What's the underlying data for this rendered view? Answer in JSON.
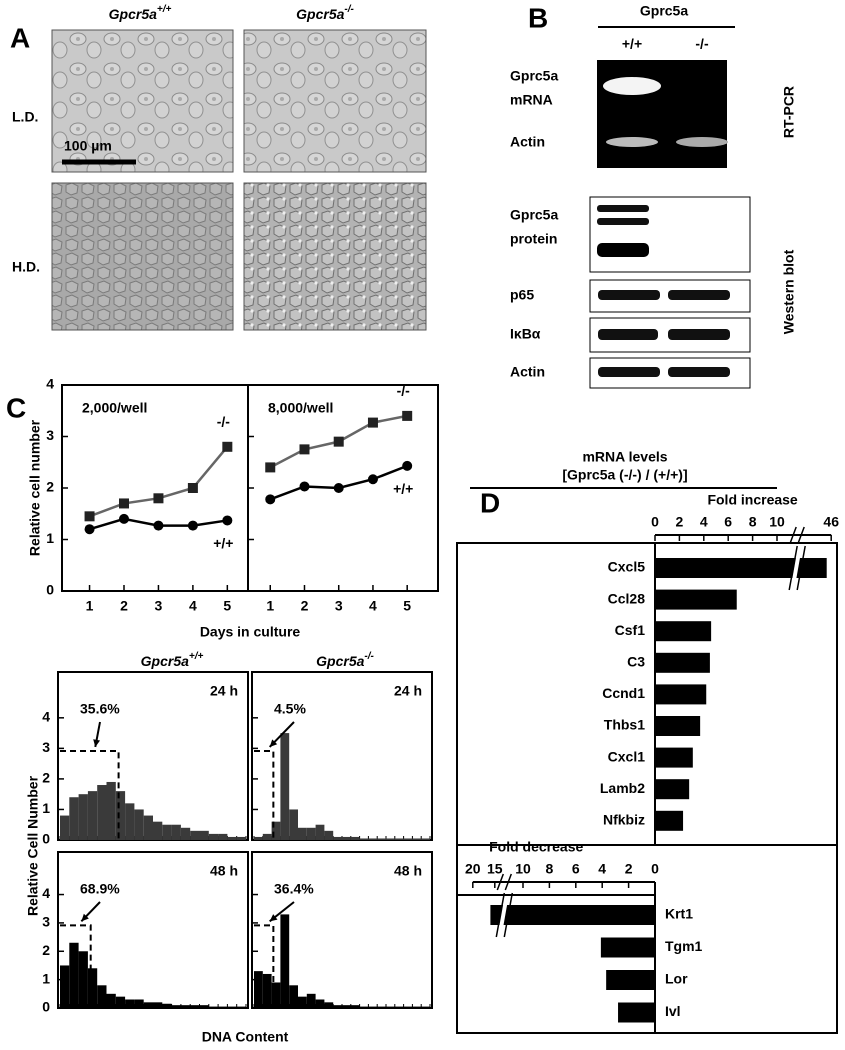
{
  "panel_labels": [
    "A",
    "B",
    "C",
    "D"
  ],
  "panel_a": {
    "columns": [
      {
        "gene": "Gpcr5a",
        "genotype": "+/+"
      },
      {
        "gene": "Gpcr5a",
        "genotype": "-/-"
      }
    ],
    "rows": [
      "L.D.",
      "H.D."
    ],
    "scale_bar": "100 µm"
  },
  "panel_b": {
    "gene": "Gprc5a",
    "lanes": [
      "+/+",
      "-/-"
    ],
    "rtpcr_label": "RT-PCR",
    "western_label": "Western blot",
    "rtpcr_bands": [
      {
        "name": "Gprc5a",
        "sub": "mRNA"
      },
      {
        "name": "Actin"
      }
    ],
    "western_bands": [
      {
        "name": "Gprc5a",
        "sub": "protein"
      },
      {
        "name": "p65"
      },
      {
        "name": "IκBα"
      },
      {
        "name": "Actin"
      }
    ]
  },
  "panel_c": {
    "y_label": "Relative cell number",
    "x_label": "Days in culture",
    "hist_columns": [
      {
        "gene": "Gpcr5a",
        "genotype": "+/+"
      },
      {
        "gene": "Gpcr5a",
        "genotype": "-/-"
      }
    ],
    "hist_y_label": "Relative Cell Number",
    "hist_x_label": "DNA Content"
  },
  "panel_d": {
    "title": "mRNA levels",
    "subtitle": "[Gprc5a (-/-) / (+/+)]"
  },
  "chart_data": [
    {
      "type": "line",
      "title": "2,000/well",
      "x": [
        1,
        2,
        3,
        4,
        5
      ],
      "xlim": [
        0.2,
        5.6
      ],
      "xticks": [
        1,
        2,
        3,
        4,
        5
      ],
      "ylim": [
        0,
        4
      ],
      "yticks": [
        0,
        1,
        2,
        3,
        4
      ],
      "series": [
        {
          "name": "-/-",
          "color": "#666666",
          "marker": "square",
          "values": [
            1.45,
            1.7,
            1.8,
            2.0,
            2.8
          ]
        },
        {
          "name": "+/+",
          "color": "#000000",
          "marker": "circle",
          "values": [
            1.2,
            1.4,
            1.27,
            1.27,
            1.37
          ]
        }
      ]
    },
    {
      "type": "line",
      "title": "8,000/well",
      "x": [
        1,
        2,
        3,
        4,
        5
      ],
      "xlim": [
        0.35,
        5.9
      ],
      "xticks": [
        1,
        2,
        3,
        4,
        5
      ],
      "ylim": [
        0,
        4
      ],
      "yticks": [
        0,
        1,
        2,
        3,
        4
      ],
      "series": [
        {
          "name": "-/-",
          "color": "#666666",
          "marker": "square",
          "values": [
            2.4,
            2.75,
            2.9,
            3.27,
            3.4
          ]
        },
        {
          "name": "+/+",
          "color": "#000000",
          "marker": "circle",
          "values": [
            1.78,
            2.03,
            2.0,
            2.17,
            2.43
          ]
        }
      ]
    },
    {
      "type": "histogram",
      "title": "24 h",
      "color": "#3a3a3a",
      "ylim": [
        0,
        5.5
      ],
      "yticks": [
        0,
        1,
        2,
        3,
        4
      ],
      "xlim": [
        0,
        20
      ],
      "bins": [
        0,
        1,
        2,
        3,
        4,
        5,
        6,
        7,
        8,
        9,
        10,
        11,
        12,
        13,
        14,
        15,
        16,
        17,
        18,
        19,
        20
      ],
      "counts": [
        0.8,
        1.4,
        1.5,
        1.6,
        1.8,
        1.9,
        1.6,
        1.2,
        1.0,
        0.8,
        0.6,
        0.5,
        0.5,
        0.4,
        0.3,
        0.3,
        0.2,
        0.2,
        0.1,
        0.1
      ],
      "gate": {
        "value": 35.6,
        "label": "35.6%",
        "xlim": [
          0,
          6.3
        ]
      }
    },
    {
      "type": "histogram",
      "title": "24 h",
      "color": "#3a3a3a",
      "ylim": [
        0,
        5.5
      ],
      "yticks": [
        0,
        1,
        2,
        3,
        4
      ],
      "xlim": [
        0,
        20
      ],
      "bins": [
        0,
        1,
        2,
        3,
        4,
        5,
        6,
        7,
        8,
        9,
        10,
        11,
        12,
        13,
        14,
        15,
        16,
        17,
        18,
        19,
        20
      ],
      "counts": [
        0.1,
        0.2,
        0.6,
        3.5,
        1.0,
        0.4,
        0.4,
        0.5,
        0.3,
        0.1,
        0.1,
        0.1,
        0.05,
        0.05,
        0.05,
        0.05,
        0.05,
        0.05,
        0.05,
        0.05
      ],
      "gate": {
        "value": 4.5,
        "label": "4.5%",
        "xlim": [
          0,
          2.2
        ]
      }
    },
    {
      "type": "histogram",
      "title": "48 h",
      "color": "#000000",
      "ylim": [
        0,
        5.5
      ],
      "yticks": [
        0,
        1,
        2,
        3,
        4
      ],
      "xlim": [
        0,
        20
      ],
      "bins": [
        0,
        1,
        2,
        3,
        4,
        5,
        6,
        7,
        8,
        9,
        10,
        11,
        12,
        13,
        14,
        15,
        16,
        17,
        18,
        19,
        20
      ],
      "counts": [
        1.5,
        2.3,
        2.0,
        1.4,
        0.8,
        0.5,
        0.4,
        0.3,
        0.3,
        0.2,
        0.2,
        0.15,
        0.1,
        0.1,
        0.1,
        0.1,
        0.05,
        0.05,
        0.05,
        0.05
      ],
      "gate": {
        "value": 68.9,
        "label": "68.9%",
        "xlim": [
          0,
          3.3
        ]
      }
    },
    {
      "type": "histogram",
      "title": "48 h",
      "color": "#000000",
      "ylim": [
        0,
        5.5
      ],
      "yticks": [
        0,
        1,
        2,
        3,
        4
      ],
      "xlim": [
        0,
        20
      ],
      "bins": [
        0,
        1,
        2,
        3,
        4,
        5,
        6,
        7,
        8,
        9,
        10,
        11,
        12,
        13,
        14,
        15,
        16,
        17,
        18,
        19,
        20
      ],
      "counts": [
        1.3,
        1.2,
        0.9,
        3.3,
        0.8,
        0.4,
        0.5,
        0.3,
        0.2,
        0.1,
        0.1,
        0.1,
        0.05,
        0.05,
        0.05,
        0.05,
        0.05,
        0.05,
        0.05,
        0.05
      ],
      "gate": {
        "value": 36.4,
        "label": "36.4%",
        "xlim": [
          0,
          2.2
        ]
      }
    },
    {
      "type": "barh",
      "title": "Fold increase",
      "color": "#000000",
      "direction": "right",
      "categories": [
        "Cxcl5",
        "Ccl28",
        "Csf1",
        "C3",
        "Ccnd1",
        "Thbs1",
        "Cxcl1",
        "Lamb2",
        "Nfkbiz"
      ],
      "values": [
        45.7,
        6.7,
        4.6,
        4.5,
        4.2,
        3.7,
        3.1,
        2.8,
        2.3
      ],
      "xlim": [
        0,
        46
      ],
      "xticks": [
        0,
        2,
        4,
        6,
        8,
        10,
        46
      ],
      "axis_break": [
        11,
        44
      ]
    },
    {
      "type": "barh",
      "title": "Fold decrease",
      "color": "#000000",
      "direction": "left",
      "categories": [
        "Krt1",
        "Tgm1",
        "Lor",
        "Ivl"
      ],
      "values": [
        16,
        4.1,
        3.7,
        2.8
      ],
      "xlim": [
        0,
        20
      ],
      "xticks": [
        20,
        15,
        10,
        8,
        6,
        4,
        2,
        0
      ],
      "axis_break": [
        11,
        15
      ]
    }
  ]
}
